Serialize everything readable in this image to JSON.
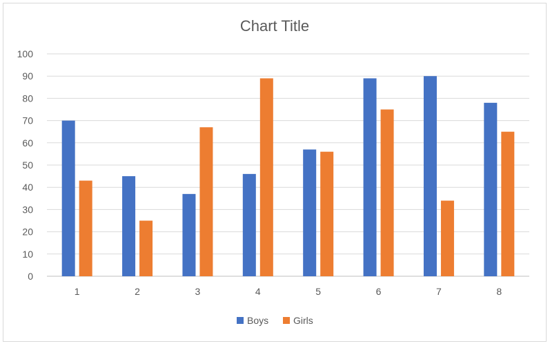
{
  "chart_data": {
    "type": "bar",
    "title": "Chart Title",
    "xlabel": "",
    "ylabel": "",
    "categories": [
      "1",
      "2",
      "3",
      "4",
      "5",
      "6",
      "7",
      "8"
    ],
    "series": [
      {
        "name": "Boys",
        "color": "#4472c4",
        "values": [
          70,
          45,
          37,
          46,
          57,
          89,
          90,
          78
        ]
      },
      {
        "name": "Girls",
        "color": "#ed7d31",
        "values": [
          43,
          25,
          67,
          89,
          56,
          75,
          34,
          65
        ]
      }
    ],
    "ylim": [
      0,
      100
    ],
    "yticks": [
      "0",
      "10",
      "20",
      "30",
      "40",
      "50",
      "60",
      "70",
      "80",
      "90",
      "100"
    ],
    "grid": true,
    "legend_position": "bottom"
  }
}
